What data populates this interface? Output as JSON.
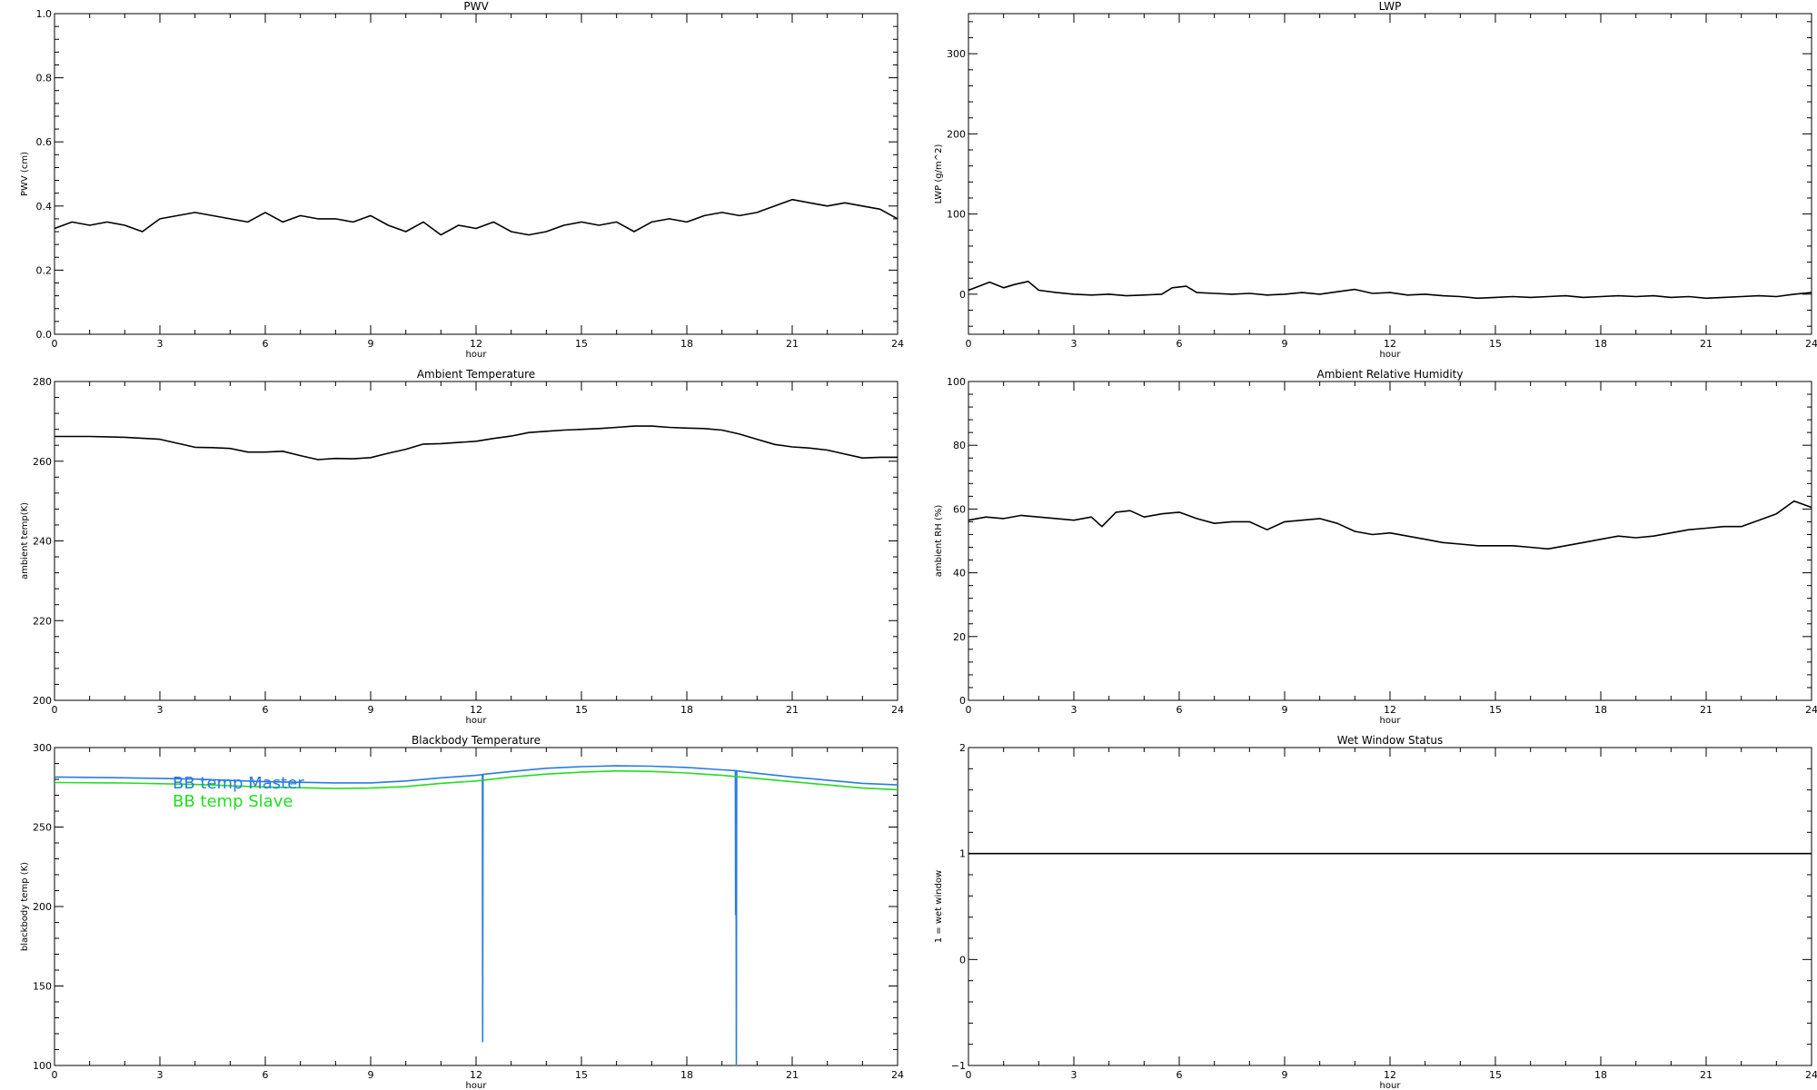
{
  "chart_data": [
    {
      "id": "pwv",
      "type": "line",
      "title": "PWV",
      "xlabel": "hour",
      "ylabel": "PWV (cm)",
      "xlim": [
        0,
        24
      ],
      "ylim": [
        0,
        1
      ],
      "x_ticks": [
        "0",
        "3",
        "6",
        "9",
        "12",
        "15",
        "18",
        "21",
        "24"
      ],
      "y_ticks": [
        "0.0",
        "0.2",
        "0.4",
        "0.6",
        "0.8",
        "1.0"
      ],
      "grid": false,
      "series": [
        {
          "color": "#000000",
          "x": [
            0,
            0.5,
            1,
            1.5,
            2,
            2.5,
            3,
            3.5,
            4,
            4.5,
            5,
            5.5,
            6,
            6.5,
            7,
            7.5,
            8,
            8.5,
            9,
            9.5,
            10,
            10.5,
            11,
            11.5,
            12,
            12.5,
            13,
            13.5,
            14,
            14.5,
            15,
            15.5,
            16,
            16.5,
            17,
            17.5,
            18,
            18.5,
            19,
            19.5,
            20,
            20.5,
            21,
            21.5,
            22,
            22.5,
            23,
            23.5,
            24
          ],
          "y": [
            0.33,
            0.35,
            0.34,
            0.35,
            0.34,
            0.32,
            0.36,
            0.37,
            0.38,
            0.37,
            0.36,
            0.35,
            0.38,
            0.35,
            0.37,
            0.36,
            0.36,
            0.35,
            0.37,
            0.34,
            0.32,
            0.35,
            0.31,
            0.34,
            0.33,
            0.35,
            0.32,
            0.31,
            0.32,
            0.34,
            0.35,
            0.34,
            0.35,
            0.32,
            0.35,
            0.36,
            0.35,
            0.37,
            0.38,
            0.37,
            0.38,
            0.4,
            0.42,
            0.41,
            0.4,
            0.41,
            0.4,
            0.39,
            0.36
          ]
        }
      ]
    },
    {
      "id": "lwp",
      "type": "line",
      "title": "LWP",
      "xlabel": "hour",
      "ylabel": "LWP (g/m^2)",
      "xlim": [
        0,
        24
      ],
      "ylim": [
        -50,
        350
      ],
      "x_ticks": [
        "0",
        "3",
        "6",
        "9",
        "12",
        "15",
        "18",
        "21",
        "24"
      ],
      "y_ticks": [
        "0",
        "100",
        "200",
        "300"
      ],
      "grid": false,
      "series": [
        {
          "color": "#000000",
          "x": [
            0,
            0.3,
            0.6,
            1,
            1.3,
            1.7,
            2,
            2.5,
            3,
            3.5,
            4,
            4.5,
            5,
            5.5,
            5.8,
            6.2,
            6.5,
            7,
            7.5,
            8,
            8.5,
            9,
            9.5,
            10,
            10.5,
            11,
            11.5,
            12,
            12.5,
            13,
            13.5,
            14,
            14.5,
            15,
            15.5,
            16,
            16.5,
            17,
            17.5,
            18,
            18.5,
            19,
            19.5,
            20,
            20.5,
            21,
            21.5,
            22,
            22.5,
            23,
            23.5,
            24
          ],
          "y": [
            5,
            10,
            15,
            8,
            12,
            16,
            5,
            2,
            0,
            -1,
            0,
            -2,
            -1,
            0,
            8,
            10,
            2,
            1,
            0,
            1,
            -1,
            0,
            2,
            0,
            3,
            6,
            1,
            2,
            -1,
            0,
            -2,
            -3,
            -5,
            -4,
            -3,
            -4,
            -3,
            -2,
            -4,
            -3,
            -2,
            -3,
            -2,
            -4,
            -3,
            -5,
            -4,
            -3,
            -2,
            -3,
            0,
            2
          ]
        }
      ]
    },
    {
      "id": "ambient-temp",
      "type": "line",
      "title": "Ambient Temperature",
      "xlabel": "hour",
      "ylabel": "ambient temp(K)",
      "xlim": [
        0,
        24
      ],
      "ylim": [
        200,
        280
      ],
      "x_ticks": [
        "0",
        "3",
        "6",
        "9",
        "12",
        "15",
        "18",
        "21",
        "24"
      ],
      "y_ticks": [
        "200",
        "220",
        "240",
        "260",
        "280"
      ],
      "grid": false,
      "series": [
        {
          "color": "#000000",
          "x": [
            0,
            1,
            2,
            3,
            3.5,
            4,
            4.5,
            5,
            5.5,
            6,
            6.5,
            7,
            7.5,
            8,
            8.5,
            9,
            9.5,
            10,
            10.5,
            11,
            11.5,
            12,
            12.5,
            13,
            13.5,
            14,
            14.5,
            15,
            15.5,
            16,
            16.5,
            17,
            17.5,
            18,
            18.5,
            19,
            19.5,
            20,
            20.5,
            21,
            21.5,
            22,
            22.5,
            23,
            23.5,
            24
          ],
          "y": [
            266.2,
            266.2,
            266.0,
            265.5,
            264.5,
            263.5,
            263.4,
            263.2,
            262.3,
            262.3,
            262.5,
            261.4,
            260.4,
            260.7,
            260.6,
            260.9,
            262.0,
            263.0,
            264.3,
            264.4,
            264.7,
            265.0,
            265.7,
            266.3,
            267.2,
            267.5,
            267.8,
            268.0,
            268.2,
            268.5,
            268.8,
            268.8,
            268.5,
            268.3,
            268.2,
            267.8,
            266.8,
            265.5,
            264.2,
            263.6,
            263.3,
            262.8,
            261.8,
            260.8,
            261.0,
            261.0
          ]
        }
      ]
    },
    {
      "id": "ambient-rh",
      "type": "line",
      "title": "Ambient Relative Humidity",
      "xlabel": "hour",
      "ylabel": "ambient RH (%)",
      "xlim": [
        0,
        24
      ],
      "ylim": [
        0,
        100
      ],
      "x_ticks": [
        "0",
        "3",
        "6",
        "9",
        "12",
        "15",
        "18",
        "21",
        "24"
      ],
      "y_ticks": [
        "0",
        "20",
        "40",
        "60",
        "80",
        "100"
      ],
      "grid": false,
      "series": [
        {
          "color": "#000000",
          "x": [
            0,
            0.5,
            1,
            1.5,
            2,
            2.5,
            3,
            3.5,
            3.8,
            4.2,
            4.6,
            5,
            5.5,
            6,
            6.5,
            7,
            7.5,
            8,
            8.5,
            9,
            9.5,
            10,
            10.5,
            11,
            11.5,
            12,
            12.5,
            13,
            13.5,
            14,
            14.5,
            15,
            15.5,
            16,
            16.5,
            17,
            17.5,
            18,
            18.5,
            19,
            19.5,
            20,
            20.5,
            21,
            21.5,
            22,
            22.5,
            23,
            23.5,
            24
          ],
          "y": [
            56.5,
            57.5,
            57.0,
            58.0,
            57.5,
            57.0,
            56.5,
            57.5,
            54.5,
            59.0,
            59.5,
            57.5,
            58.5,
            59.0,
            57.0,
            55.5,
            56.0,
            56.0,
            53.5,
            56.0,
            56.5,
            57.0,
            55.5,
            53.0,
            52.0,
            52.5,
            51.5,
            50.5,
            49.5,
            49.0,
            48.5,
            48.5,
            48.5,
            48.0,
            47.5,
            48.5,
            49.5,
            50.5,
            51.5,
            51.0,
            51.5,
            52.5,
            53.5,
            54.0,
            54.5,
            54.5,
            56.5,
            58.5,
            62.5,
            60.5
          ]
        }
      ]
    },
    {
      "id": "bb-temp",
      "type": "line",
      "title": "Blackbody Temperature",
      "xlabel": "hour",
      "ylabel": "blackbody temp (K)",
      "xlim": [
        0,
        24
      ],
      "ylim": [
        100,
        300
      ],
      "x_ticks": [
        "0",
        "3",
        "6",
        "9",
        "12",
        "15",
        "18",
        "21",
        "24"
      ],
      "y_ticks": [
        "100",
        "150",
        "200",
        "250",
        "300"
      ],
      "grid": false,
      "legend": "top-left",
      "series": [
        {
          "name": "BB temp Master",
          "color": "#2a7ae0",
          "x": [
            0,
            2,
            4,
            6,
            8,
            9,
            10,
            11,
            12,
            12.18,
            12.19,
            12.2,
            12.21,
            13,
            14,
            15,
            16,
            17,
            18,
            19,
            19.38,
            19.39,
            19.4,
            19.41,
            19.42,
            19.43,
            20,
            21,
            22,
            23,
            24
          ],
          "y": [
            281.5,
            281.0,
            280.2,
            278.5,
            277.8,
            277.8,
            279.0,
            281.0,
            282.5,
            283.0,
            115.0,
            283.0,
            283.2,
            285.0,
            287.0,
            288.0,
            288.5,
            288.3,
            287.5,
            286.0,
            285.5,
            195.0,
            285.5,
            101.0,
            285.5,
            285.3,
            283.8,
            281.5,
            279.5,
            277.5,
            276.5
          ]
        },
        {
          "name": "BB temp Slave",
          "color": "#22dd22",
          "x": [
            0,
            2,
            4,
            6,
            8,
            9,
            10,
            11,
            12,
            13,
            14,
            15,
            16,
            17,
            18,
            19,
            20,
            21,
            22,
            23,
            24
          ],
          "y": [
            278.0,
            277.7,
            276.8,
            275.2,
            274.2,
            274.5,
            275.5,
            277.5,
            279.0,
            281.5,
            283.3,
            284.5,
            285.3,
            285.0,
            284.0,
            282.5,
            280.5,
            278.5,
            276.5,
            274.5,
            273.5
          ]
        }
      ]
    },
    {
      "id": "wet-window",
      "type": "line",
      "title": "Wet Window Status",
      "xlabel": "hour",
      "ylabel": "1 = wet window",
      "xlim": [
        0,
        24
      ],
      "ylim": [
        -1,
        2
      ],
      "x_ticks": [
        "0",
        "3",
        "6",
        "9",
        "12",
        "15",
        "18",
        "21",
        "24"
      ],
      "y_ticks": [
        "−1",
        "0",
        "1",
        "2"
      ],
      "grid": false,
      "series": [
        {
          "color": "#000000",
          "x": [
            0,
            24
          ],
          "y": [
            1,
            1
          ]
        }
      ]
    }
  ]
}
